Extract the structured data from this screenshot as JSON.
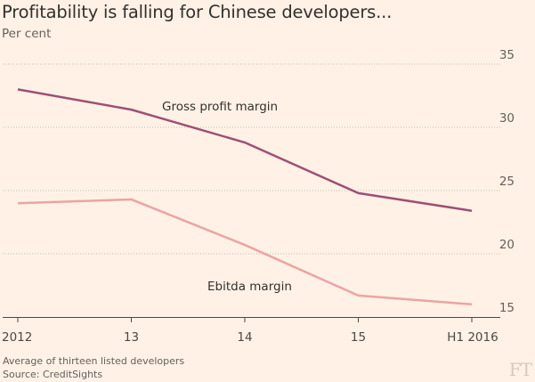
{
  "chart_data": {
    "type": "line",
    "title": "Profitability is falling for Chinese developers...",
    "subtitle": "Per cent",
    "categories": [
      "2012",
      "13",
      "14",
      "15",
      "H1 2016"
    ],
    "series": [
      {
        "name": "Gross profit margin",
        "values": [
          33.0,
          31.4,
          28.8,
          24.8,
          23.4
        ],
        "color": "#9e4f75"
      },
      {
        "name": "Ebitda margin",
        "values": [
          24.0,
          24.3,
          20.7,
          16.7,
          16.0
        ],
        "color": "#eba4a4"
      }
    ],
    "yaxis": {
      "position": "right",
      "ticks": [
        15,
        20,
        25,
        30,
        35
      ],
      "ylim": [
        15,
        35
      ]
    },
    "grid": "horizontal-dotted"
  },
  "footer": {
    "note": "Average of thirteen listed developers",
    "source": "Source: CreditSights"
  },
  "branding": {
    "logo": "FT"
  }
}
